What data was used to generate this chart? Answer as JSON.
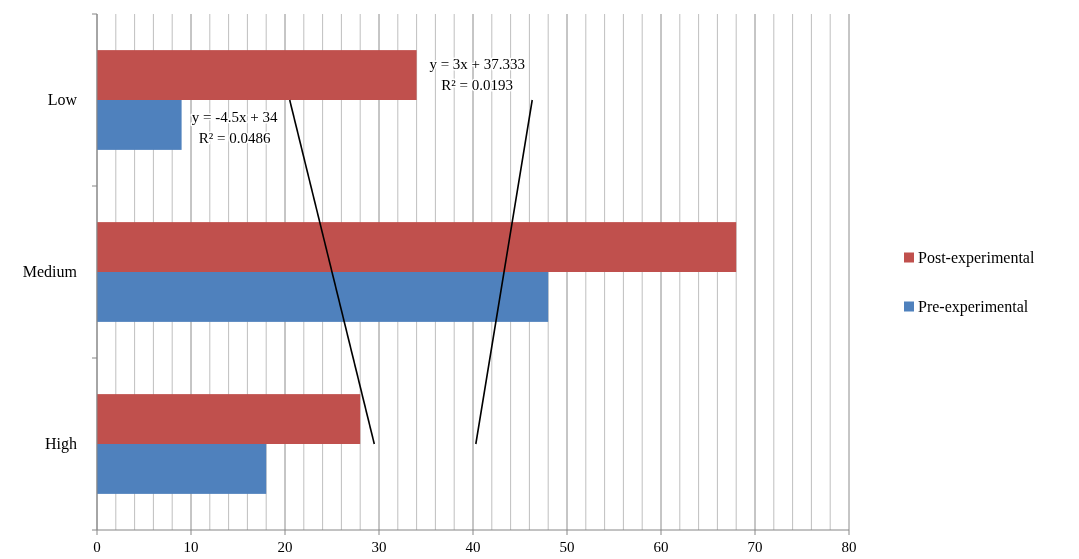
{
  "chart_data": {
    "type": "bar",
    "orientation": "horizontal",
    "categories": [
      "Low",
      "Medium",
      "High"
    ],
    "series": [
      {
        "name": "Post-experimental",
        "color": "#c0504d",
        "values": [
          34,
          68,
          28
        ]
      },
      {
        "name": "Pre-experimental",
        "color": "#4f81bd",
        "values": [
          9,
          48,
          18
        ]
      },
      {
        "type": "line",
        "color": "#000000",
        "values": [
          46.3,
          43.3,
          40.3
        ]
      },
      {
        "type": "line",
        "color": "#000000",
        "values": [
          20.5,
          25,
          29.5
        ]
      }
    ],
    "xlim": [
      0,
      80
    ],
    "xticks": [
      0,
      {
        "value": 2,
        "label": null
      },
      {
        "value": 4,
        "label": null
      },
      {
        "value": 6,
        "label": null
      },
      {
        "value": 8,
        "label": null
      },
      10,
      {
        "value": 12,
        "label": null
      },
      {
        "value": 14,
        "label": null
      },
      {
        "value": 16,
        "label": null
      },
      {
        "value": 18,
        "label": null
      },
      20,
      {
        "value": 22,
        "label": null
      },
      {
        "value": 24,
        "label": null
      },
      {
        "value": 26,
        "label": null
      },
      {
        "value": 28,
        "label": null
      },
      30,
      {
        "value": 32,
        "label": null
      },
      {
        "value": 34,
        "label": null
      },
      {
        "value": 36,
        "label": null
      },
      {
        "value": 38,
        "label": null
      },
      40,
      {
        "value": 42,
        "label": null
      },
      {
        "value": 44,
        "label": null
      },
      {
        "value": 46,
        "label": null
      },
      {
        "value": 48,
        "label": null
      },
      50,
      {
        "value": 52,
        "label": null
      },
      {
        "value": 54,
        "label": null
      },
      {
        "value": 56,
        "label": null
      },
      {
        "value": 58,
        "label": null
      },
      60,
      {
        "value": 62,
        "label": null
      },
      {
        "value": 64,
        "label": null
      },
      {
        "value": 66,
        "label": null
      },
      {
        "value": 68,
        "label": null
      },
      70,
      {
        "value": 72,
        "label": null
      },
      {
        "value": 74,
        "label": null
      },
      {
        "value": 76,
        "label": null
      },
      {
        "value": 78,
        "label": null
      },
      80
    ],
    "grid": "x",
    "legend": "right",
    "annotations": [
      "y = 3x + 37.333\nR² = 0.0193",
      "y = -4.5x + 34\nR² = 0.0486"
    ]
  }
}
